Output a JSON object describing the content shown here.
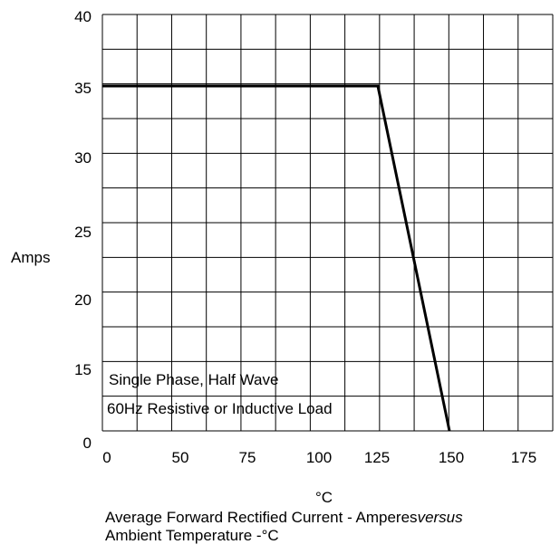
{
  "chart_data": {
    "type": "line",
    "title": "",
    "ylabel": "Amps",
    "xlabel": "°C",
    "y_tick_labels": [
      "40",
      "35",
      "30",
      "25",
      "20",
      "15",
      "0"
    ],
    "x_tick_labels": [
      "0",
      "50",
      "75",
      "100",
      "125",
      "150",
      "175"
    ],
    "series": [
      {
        "points": [
          {
            "x": 0,
            "y": 34.8
          },
          {
            "x": 125,
            "y": 34.8
          },
          {
            "x": 150,
            "y": 0
          }
        ]
      }
    ],
    "annotations": [
      "Single Phase, Half Wave",
      "60Hz Resistive or Inductive Load"
    ],
    "grid": true
  },
  "caption": {
    "line1_prefix": "Average Forward Rectified Current  - Amperes",
    "line1_italic": "versus",
    "line2": "Ambient Temperature  -°C"
  }
}
